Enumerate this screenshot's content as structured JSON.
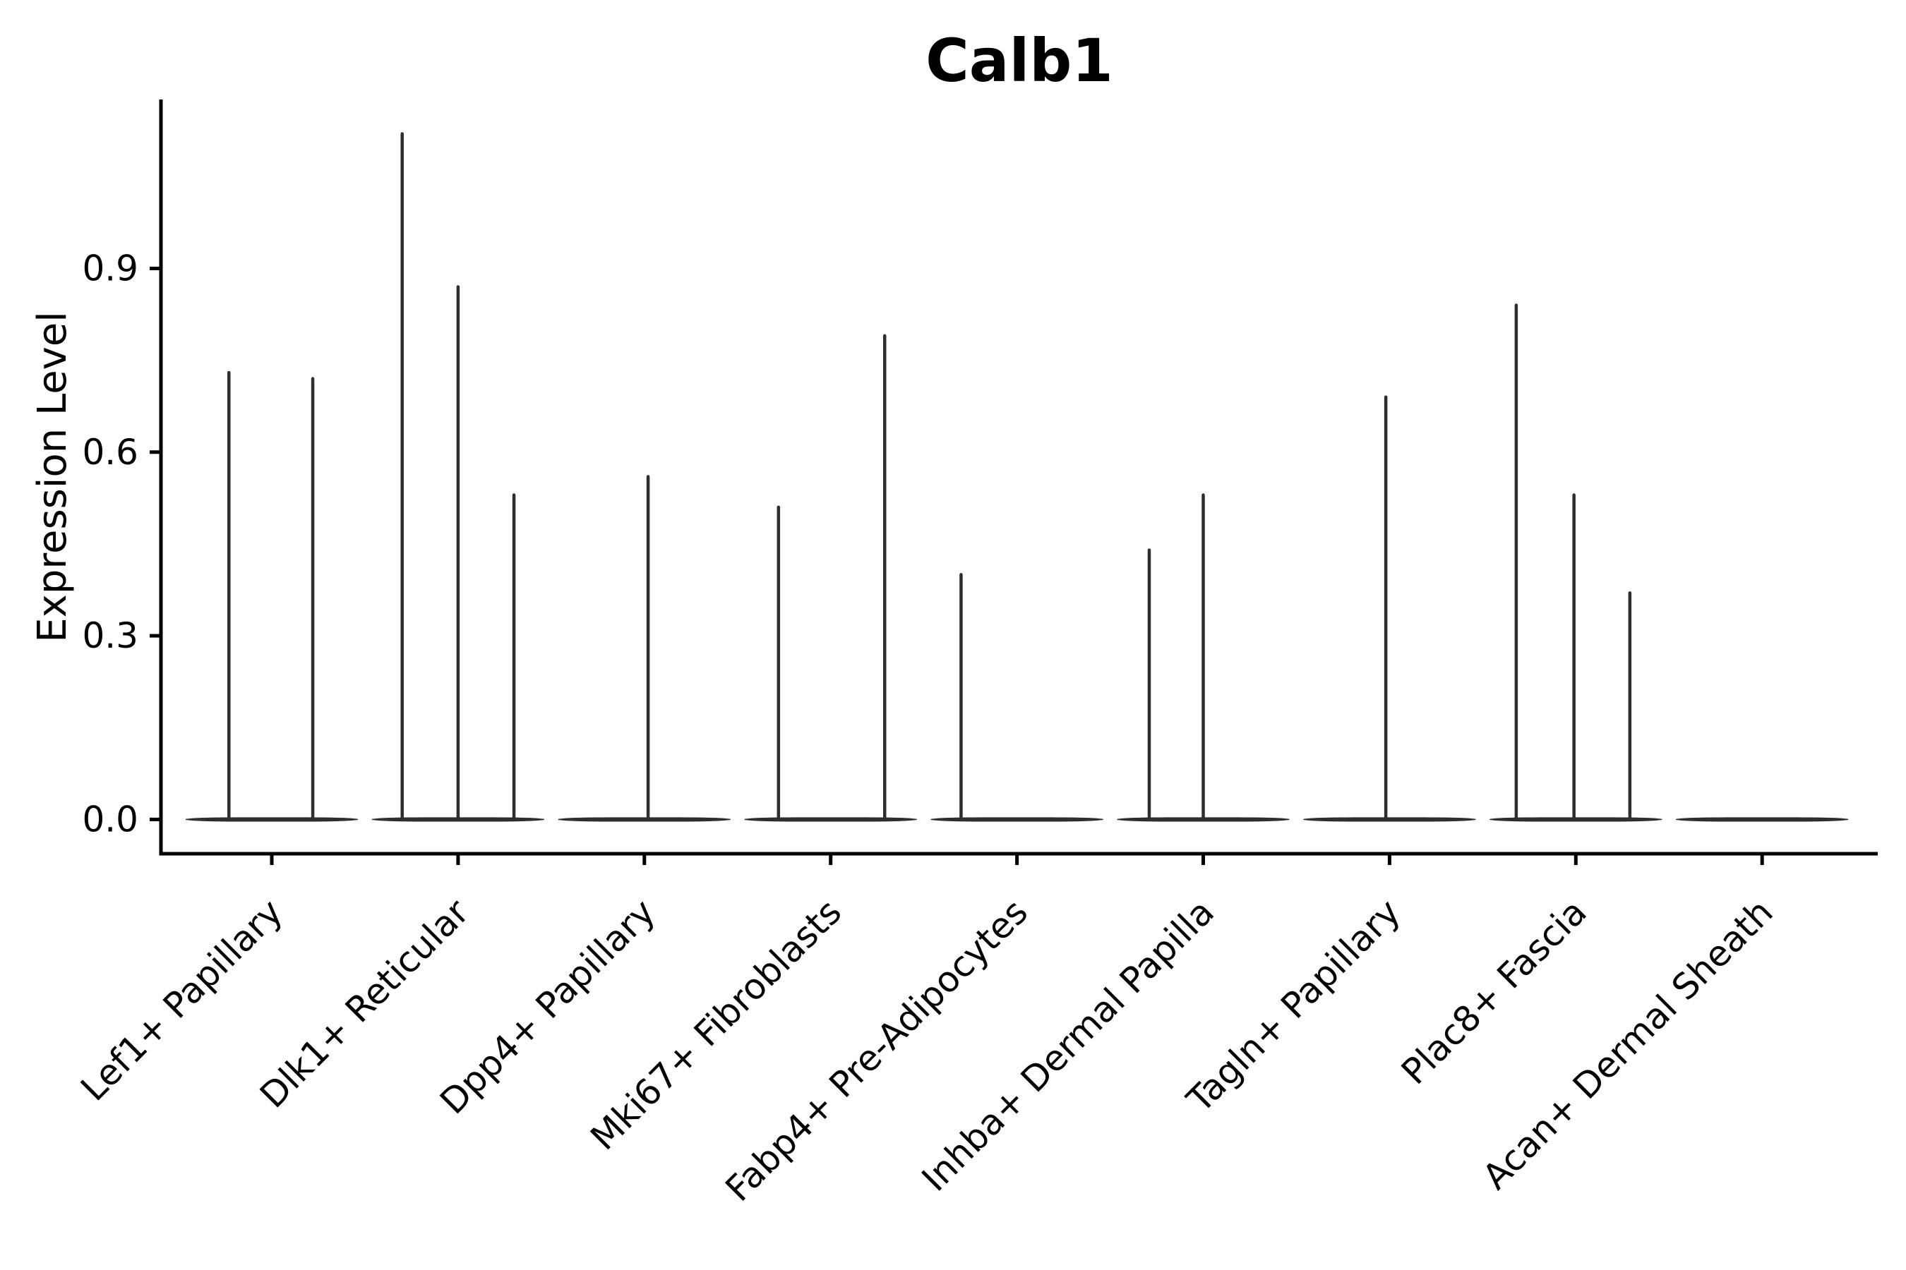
{
  "figure": {
    "title": "Calb1"
  },
  "y_axis": {
    "label": "Expression Level",
    "ticks": [
      {
        "label": "0.0",
        "value": 0.0
      },
      {
        "label": "0.3",
        "value": 0.3
      },
      {
        "label": "0.6",
        "value": 0.6
      },
      {
        "label": "0.9",
        "value": 0.9
      }
    ],
    "range": [
      -0.056,
      1.176
    ]
  },
  "x_axis": {
    "categories": [
      "Lef1+ Papillary",
      "Dlk1+ Reticular",
      "Dpp4+ Papillary",
      "Mki67+ Fibroblasts",
      "Fabp4+ Pre-Adipocytes",
      "Inhba+ Dermal Papilla",
      "Tagln+ Papillary",
      "Plac8+ Fascia",
      "Acan+ Dermal Sheath"
    ]
  },
  "chart_data": {
    "type": "violin",
    "title": "Calb1",
    "xlabel": "",
    "ylabel": "Expression Level",
    "ylim": [
      -0.056,
      1.176
    ],
    "yticks": [
      0.0,
      0.3,
      0.6,
      0.9
    ],
    "grid": false,
    "legend": "none",
    "violin_halfwidth_frac": 0.46,
    "categories": [
      "Lef1+ Papillary",
      "Dlk1+ Reticular",
      "Dpp4+ Papillary",
      "Mki67+ Fibroblasts",
      "Fabp4+ Pre-Adipocytes",
      "Inhba+ Dermal Papilla",
      "Tagln+ Papillary",
      "Plac8+ Fascia",
      "Acan+ Dermal Sheath"
    ],
    "series": [
      {
        "category": "Lef1+ Papillary",
        "points": [
          {
            "value": 0.73,
            "offset": -0.23
          },
          {
            "value": 0.72,
            "offset": 0.22
          }
        ]
      },
      {
        "category": "Dlk1+ Reticular",
        "points": [
          {
            "value": 1.12,
            "offset": -0.3
          },
          {
            "value": 0.87,
            "offset": 0.0
          },
          {
            "value": 0.53,
            "offset": 0.3
          }
        ]
      },
      {
        "category": "Dpp4+ Papillary",
        "points": [
          {
            "value": 0.56,
            "offset": 0.02
          }
        ]
      },
      {
        "category": "Mki67+ Fibroblasts",
        "points": [
          {
            "value": 0.51,
            "offset": -0.28
          },
          {
            "value": 0.79,
            "offset": 0.29
          }
        ]
      },
      {
        "category": "Fabp4+ Pre-Adipocytes",
        "points": [
          {
            "value": 0.4,
            "offset": -0.3
          }
        ]
      },
      {
        "category": "Inhba+ Dermal Papilla",
        "points": [
          {
            "value": 0.44,
            "offset": -0.29
          },
          {
            "value": 0.53,
            "offset": 0.0
          }
        ]
      },
      {
        "category": "Tagln+ Papillary",
        "points": [
          {
            "value": 0.69,
            "offset": -0.02
          }
        ]
      },
      {
        "category": "Plac8+ Fascia",
        "points": [
          {
            "value": 0.84,
            "offset": -0.32
          },
          {
            "value": 0.53,
            "offset": -0.01
          },
          {
            "value": 0.37,
            "offset": 0.29
          }
        ]
      },
      {
        "category": "Acan+ Dermal Sheath",
        "points": []
      }
    ],
    "baseline_value": 0.0
  },
  "style": {
    "violin_color": "#2e2e2e",
    "axis_color": "#000000",
    "text_color": "#000000",
    "background": "#ffffff"
  }
}
